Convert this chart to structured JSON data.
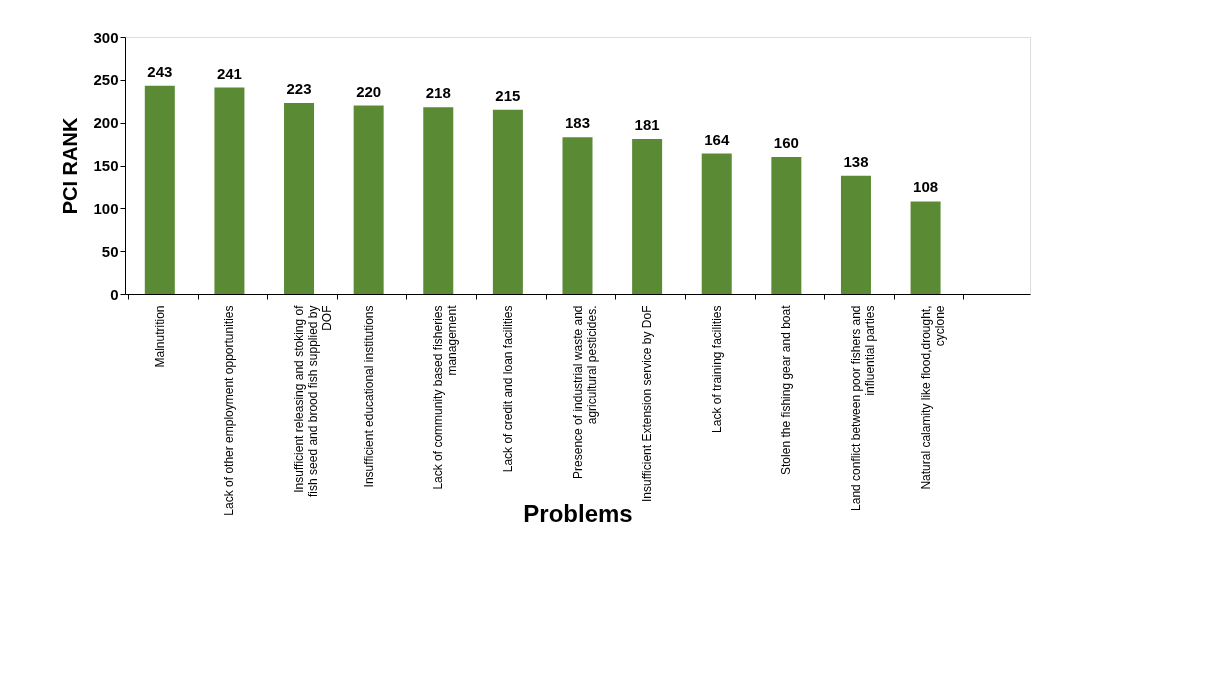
{
  "chart_data": {
    "type": "bar",
    "xlabel": "Problems",
    "ylabel": "PCI  RANK",
    "categories": [
      "Malnutrition",
      "Lack of other employment opportunities",
      "Insufficient releasing and stoking  of  fish seed and brood fish  supplied by DOF",
      "Insufficient educational institutions",
      "Lack of community based fisheries management",
      "Lack of credit and  loan facilities",
      "Presence of  industrial waste  and agricultural pesticides.",
      "Insufficient Extension service by DoF",
      "Lack of training facilities",
      "Stolen the fishing gear and boat",
      "Land conflict between poor fishers and influential parties",
      "Natural calamity like flood,drought, cyclone",
      null
    ],
    "values": [
      243,
      241,
      223,
      220,
      218,
      215,
      183,
      181,
      164,
      160,
      138,
      108,
      null
    ],
    "color": "#5a8a34",
    "ylim": [
      0,
      300
    ],
    "yticks": [
      0,
      50,
      100,
      150,
      200,
      250,
      300
    ],
    "grid": false,
    "data_labels": true
  }
}
